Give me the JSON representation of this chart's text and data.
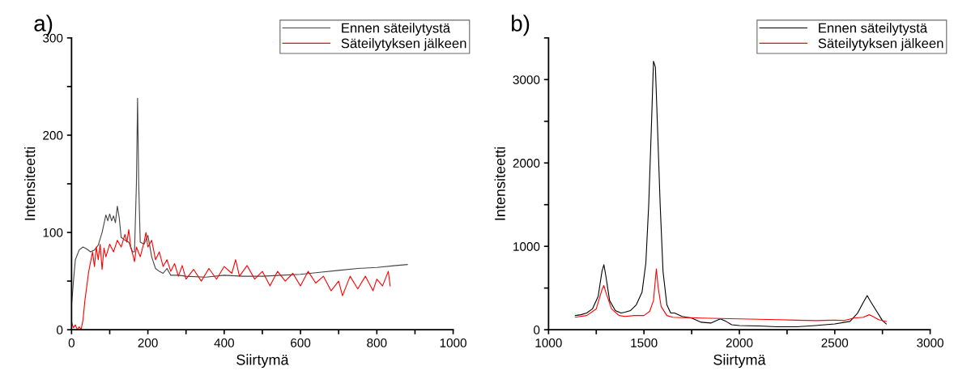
{
  "chart_data": [
    {
      "type": "line",
      "title": "a)",
      "xlabel": "Siirtymä",
      "ylabel": "Intensiteetti",
      "xlim": [
        0,
        1000
      ],
      "ylim": [
        0,
        300
      ],
      "xticks": [
        0,
        {
          "value": 100,
          "label": null
        },
        200,
        {
          "value": 300,
          "label": null
        },
        400,
        {
          "value": 500,
          "label": null
        },
        600,
        {
          "value": 700,
          "label": null
        },
        800,
        {
          "value": 900,
          "label": null
        },
        1000
      ],
      "yticks": [
        0,
        {
          "value": 50,
          "label": null
        },
        100,
        {
          "value": 150,
          "label": null
        },
        200,
        {
          "value": 250,
          "label": null
        },
        300
      ],
      "grid": false,
      "legend": "top right",
      "line_style": "solid",
      "marker": "none",
      "series": [
        {
          "name": "Ennen säteilytystä",
          "color": "#444444",
          "x": [
            0,
            5,
            10,
            20,
            30,
            40,
            50,
            60,
            70,
            80,
            90,
            95,
            100,
            105,
            110,
            115,
            120,
            125,
            130,
            140,
            150,
            160,
            165,
            170,
            173,
            176,
            180,
            190,
            200,
            210,
            220,
            230,
            240,
            250,
            260,
            280,
            300,
            350,
            400,
            450,
            500,
            550,
            600,
            650,
            700,
            750,
            800,
            850,
            880
          ],
          "values": [
            25,
            50,
            72,
            82,
            85,
            83,
            80,
            82,
            87,
            100,
            118,
            112,
            119,
            112,
            117,
            110,
            127,
            115,
            95,
            92,
            90,
            80,
            80,
            150,
            238,
            150,
            90,
            88,
            97,
            75,
            63,
            60,
            58,
            63,
            56,
            56,
            55,
            54,
            56,
            55,
            55,
            56,
            57,
            59,
            61,
            63,
            64,
            66,
            67
          ]
        },
        {
          "name": "Säteilytyksen jälkeen",
          "color": "#ff0000",
          "x": [
            0,
            5,
            10,
            15,
            20,
            25,
            30,
            35,
            40,
            45,
            50,
            55,
            60,
            65,
            70,
            75,
            80,
            85,
            90,
            100,
            110,
            120,
            130,
            140,
            145,
            150,
            155,
            160,
            165,
            170,
            180,
            190,
            195,
            200,
            210,
            220,
            230,
            240,
            250,
            260,
            270,
            280,
            290,
            300,
            320,
            340,
            360,
            380,
            400,
            420,
            430,
            440,
            460,
            480,
            500,
            520,
            540,
            560,
            580,
            600,
            620,
            640,
            660,
            680,
            700,
            710,
            730,
            750,
            770,
            790,
            800,
            815,
            830,
            835
          ],
          "values": [
            8,
            2,
            5,
            0,
            3,
            0,
            10,
            30,
            45,
            60,
            70,
            80,
            65,
            85,
            72,
            88,
            62,
            84,
            75,
            88,
            80,
            92,
            85,
            98,
            90,
            103,
            85,
            78,
            70,
            85,
            75,
            90,
            100,
            85,
            92,
            72,
            80,
            65,
            72,
            60,
            68,
            55,
            66,
            52,
            62,
            50,
            63,
            52,
            65,
            58,
            72,
            55,
            66,
            52,
            60,
            45,
            60,
            50,
            58,
            45,
            60,
            48,
            55,
            40,
            50,
            35,
            55,
            42,
            55,
            40,
            52,
            45,
            60,
            45
          ]
        }
      ]
    },
    {
      "type": "line",
      "title": "b)",
      "xlabel": "Siirtymä",
      "ylabel": "Intensiteetti",
      "xlim": [
        1000,
        3000
      ],
      "ylim": [
        0,
        3500
      ],
      "xticks": [
        1000,
        {
          "value": 1250,
          "label": null
        },
        1500,
        {
          "value": 1750,
          "label": null
        },
        2000,
        {
          "value": 2250,
          "label": null
        },
        2500,
        {
          "value": 2750,
          "label": null
        },
        3000
      ],
      "yticks": [
        0,
        {
          "value": 500,
          "label": null
        },
        1000,
        {
          "value": 1500,
          "label": null
        },
        2000,
        {
          "value": 2500,
          "label": null
        },
        3000,
        {
          "value": 3500,
          "label": null
        }
      ],
      "grid": false,
      "legend": "top right",
      "line_style": "solid",
      "marker": "none",
      "series": [
        {
          "name": "Ennen säteilytystä",
          "color": "#000000",
          "x": [
            1140,
            1170,
            1200,
            1230,
            1260,
            1280,
            1290,
            1300,
            1320,
            1350,
            1380,
            1400,
            1430,
            1460,
            1490,
            1510,
            1525,
            1540,
            1550,
            1560,
            1570,
            1585,
            1600,
            1620,
            1640,
            1660,
            1700,
            1750,
            1800,
            1850,
            1900,
            1930,
            1960,
            2000,
            2100,
            2200,
            2300,
            2400,
            2500,
            2580,
            2620,
            2650,
            2670,
            2690,
            2720,
            2750,
            2770
          ],
          "values": [
            170,
            180,
            200,
            250,
            400,
            700,
            780,
            650,
            350,
            230,
            200,
            210,
            230,
            300,
            450,
            800,
            1500,
            2500,
            3220,
            3150,
            2500,
            1500,
            700,
            300,
            200,
            200,
            160,
            140,
            90,
            80,
            130,
            100,
            60,
            50,
            45,
            35,
            35,
            50,
            70,
            100,
            200,
            330,
            410,
            330,
            220,
            110,
            70
          ]
        },
        {
          "name": "Säteilytyksen jälkeen",
          "color": "#ff0000",
          "x": [
            1140,
            1200,
            1250,
            1280,
            1290,
            1300,
            1330,
            1370,
            1400,
            1450,
            1500,
            1530,
            1550,
            1565,
            1575,
            1590,
            1620,
            1650,
            1700,
            1750,
            1800,
            1900,
            2000,
            2100,
            2200,
            2300,
            2400,
            2500,
            2550,
            2600,
            2650,
            2680,
            2700,
            2730,
            2770
          ],
          "values": [
            150,
            170,
            250,
            480,
            530,
            450,
            250,
            170,
            160,
            170,
            170,
            220,
            350,
            730,
            500,
            280,
            170,
            150,
            145,
            145,
            140,
            135,
            130,
            125,
            120,
            115,
            110,
            115,
            110,
            140,
            150,
            180,
            160,
            120,
            100
          ]
        }
      ]
    }
  ]
}
